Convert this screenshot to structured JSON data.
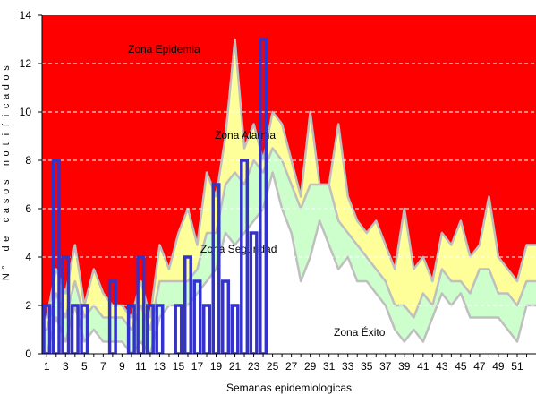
{
  "chart_data": {
    "type": "area",
    "title": "",
    "xlabel": "Semanas epidemiologicas",
    "ylabel": "N° de casos notificados",
    "ylim": [
      0,
      14
    ],
    "yticks": [
      0,
      2,
      4,
      6,
      8,
      10,
      12,
      14
    ],
    "xlim": [
      1,
      52
    ],
    "xtick_labels": [
      "1",
      "3",
      "5",
      "7",
      "9",
      "11",
      "13",
      "15",
      "17",
      "19",
      "21",
      "23",
      "25",
      "27",
      "29",
      "31",
      "33",
      "35",
      "37",
      "39",
      "41",
      "43",
      "45",
      "47",
      "49",
      "51"
    ],
    "grid": "horizontal-dashed",
    "colors": {
      "epidemia": "#ff0000",
      "alarma": "#ffff99",
      "seguridad": "#ccffcc",
      "exito": "#ffffff",
      "bars": "#3333cc",
      "grid": "#ffffff",
      "band_edge": "#bfbfbf"
    },
    "weeks": [
      1,
      2,
      3,
      4,
      5,
      6,
      7,
      8,
      9,
      10,
      11,
      12,
      13,
      14,
      15,
      16,
      17,
      18,
      19,
      20,
      21,
      22,
      23,
      24,
      25,
      26,
      27,
      28,
      29,
      30,
      31,
      32,
      33,
      34,
      35,
      36,
      37,
      38,
      39,
      40,
      41,
      42,
      43,
      44,
      45,
      46,
      47,
      48,
      49,
      50,
      51,
      52
    ],
    "series": [
      {
        "name": "Zona Epidemia",
        "values": [
          14,
          14,
          14,
          14,
          14,
          14,
          14,
          14,
          14,
          14,
          14,
          14,
          14,
          14,
          14,
          14,
          14,
          14,
          14,
          14,
          14,
          14,
          14,
          14,
          14,
          14,
          14,
          14,
          14,
          14,
          14,
          14,
          14,
          14,
          14,
          14,
          14,
          14,
          14,
          14,
          14,
          14,
          14,
          14,
          14,
          14,
          14,
          14,
          14,
          14,
          14,
          14
        ]
      },
      {
        "name": "Zona Alarma",
        "values": [
          1.5,
          3.5,
          2.5,
          4.5,
          2,
          3.5,
          2.5,
          2,
          2,
          1.5,
          3,
          1.5,
          4.5,
          3.5,
          5,
          6,
          4.5,
          7.5,
          6.5,
          9,
          13,
          8.5,
          9.5,
          8,
          10,
          9.5,
          8,
          6.5,
          10,
          7,
          7,
          9.5,
          6.5,
          5.5,
          5,
          5.5,
          4.5,
          3.5,
          6,
          3.5,
          4,
          3,
          5,
          4.5,
          5.5,
          4,
          4.5,
          6.5,
          4,
          3.5,
          3,
          4.5
        ]
      },
      {
        "name": "Zona Seguridad",
        "values": [
          1,
          2.5,
          1.5,
          3,
          1.5,
          2,
          1.5,
          1.5,
          1.5,
          1,
          2,
          1,
          3,
          3,
          3,
          3,
          3.5,
          5,
          5,
          7,
          7.5,
          7,
          8,
          7.5,
          8.5,
          8,
          7,
          6,
          7,
          7,
          7,
          5.5,
          5,
          4.5,
          4,
          3.5,
          3,
          2,
          2,
          1.5,
          2.5,
          2,
          3.5,
          3,
          3,
          2.5,
          3.5,
          3.5,
          2.5,
          2.5,
          2,
          3
        ]
      },
      {
        "name": "Zona Éxito",
        "values": [
          0,
          1.5,
          0.5,
          2,
          0.5,
          1,
          0.5,
          0.5,
          0.5,
          0,
          0.5,
          0,
          1.5,
          2,
          2,
          2,
          2.5,
          3,
          3.5,
          5,
          4.5,
          5,
          5.5,
          6,
          7.5,
          6,
          5,
          3,
          4,
          5.5,
          4.5,
          3.5,
          4,
          3,
          3,
          2.5,
          2,
          1,
          0.5,
          1,
          0.5,
          1.5,
          2.5,
          2,
          2.5,
          1.5,
          1.5,
          1.5,
          1.5,
          1,
          0.5,
          2
        ]
      }
    ],
    "bars": {
      "name": "Casos notificados",
      "weeks": [
        1,
        2,
        3,
        4,
        5,
        8,
        10,
        11,
        12,
        13,
        15,
        16,
        17,
        18,
        19,
        20,
        21,
        22,
        23,
        24
      ],
      "values": [
        2,
        8,
        4,
        2,
        2,
        3,
        2,
        4,
        2,
        2,
        2,
        4,
        3,
        2,
        7,
        3,
        2,
        8,
        5,
        13
      ]
    },
    "zone_labels": {
      "epidemia": "Zona Epidemia",
      "alarma": "Zona Alarma",
      "seguridad": "Zona Seguridad",
      "exito": "Zona Éxito"
    },
    "legend": "none"
  }
}
